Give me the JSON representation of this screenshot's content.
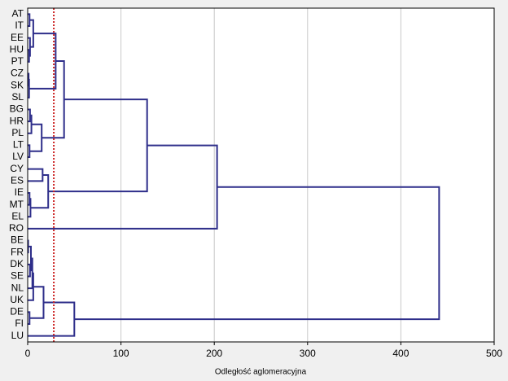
{
  "chart_data": {
    "type": "dendrogram",
    "xlabel": "Odległość aglomeracyjna",
    "xlim": [
      0,
      500
    ],
    "xticks": [
      0,
      100,
      200,
      300,
      400,
      500
    ],
    "grid": true,
    "color": "#2e2e8a",
    "threshold": 28,
    "threshold_color": "#cc2222",
    "tree": {
      "height": 441,
      "children": [
        {
          "height": 203,
          "children": [
            {
              "height": 128,
              "children": [
                {
                  "height": 39,
                  "children": [
                    {
                      "height": 30,
                      "children": [
                        {
                          "height": 6,
                          "children": [
                            {
                              "height": 2,
                              "children": [
                                "AT",
                                "IT"
                              ]
                            },
                            {
                              "height": 2.5,
                              "children": [
                                "EE",
                                {
                                  "height": 1.5,
                                  "children": [
                                    "HU",
                                    "PT"
                                  ]
                                }
                              ]
                            }
                          ]
                        },
                        {
                          "height": 1.5,
                          "children": [
                            {
                              "height": 1,
                              "children": [
                                "CZ",
                                "SK"
                              ]
                            },
                            "SL"
                          ]
                        }
                      ]
                    },
                    {
                      "height": 15,
                      "children": [
                        {
                          "height": 4,
                          "children": [
                            {
                              "height": 2.5,
                              "children": [
                                "BG",
                                "HR"
                              ]
                            },
                            "PL"
                          ]
                        },
                        {
                          "height": 2,
                          "children": [
                            "LT",
                            "LV"
                          ]
                        }
                      ]
                    }
                  ]
                },
                {
                  "height": 22,
                  "children": [
                    {
                      "height": 16,
                      "children": [
                        "CY",
                        "ES"
                      ]
                    },
                    {
                      "height": 3,
                      "children": [
                        {
                          "height": 2,
                          "children": [
                            "IE",
                            "MT"
                          ]
                        },
                        "EL"
                      ]
                    }
                  ]
                }
              ]
            },
            "RO"
          ]
        },
        {
          "height": 50,
          "children": [
            {
              "height": 17,
              "children": [
                {
                  "height": 6,
                  "children": [
                    {
                      "height": 5,
                      "children": [
                        {
                          "height": 3.5,
                          "children": [
                            {
                              "height": 0.5,
                              "children": [
                                "BE",
                                "FR"
                              ]
                            },
                            {
                              "height": 2.5,
                              "children": [
                                "DK",
                                "SE"
                              ]
                            }
                          ]
                        },
                        "NL"
                      ]
                    },
                    "UK"
                  ]
                },
                {
                  "height": 2,
                  "children": [
                    "DE",
                    "FI"
                  ]
                }
              ]
            },
            "LU"
          ]
        }
      ]
    }
  }
}
